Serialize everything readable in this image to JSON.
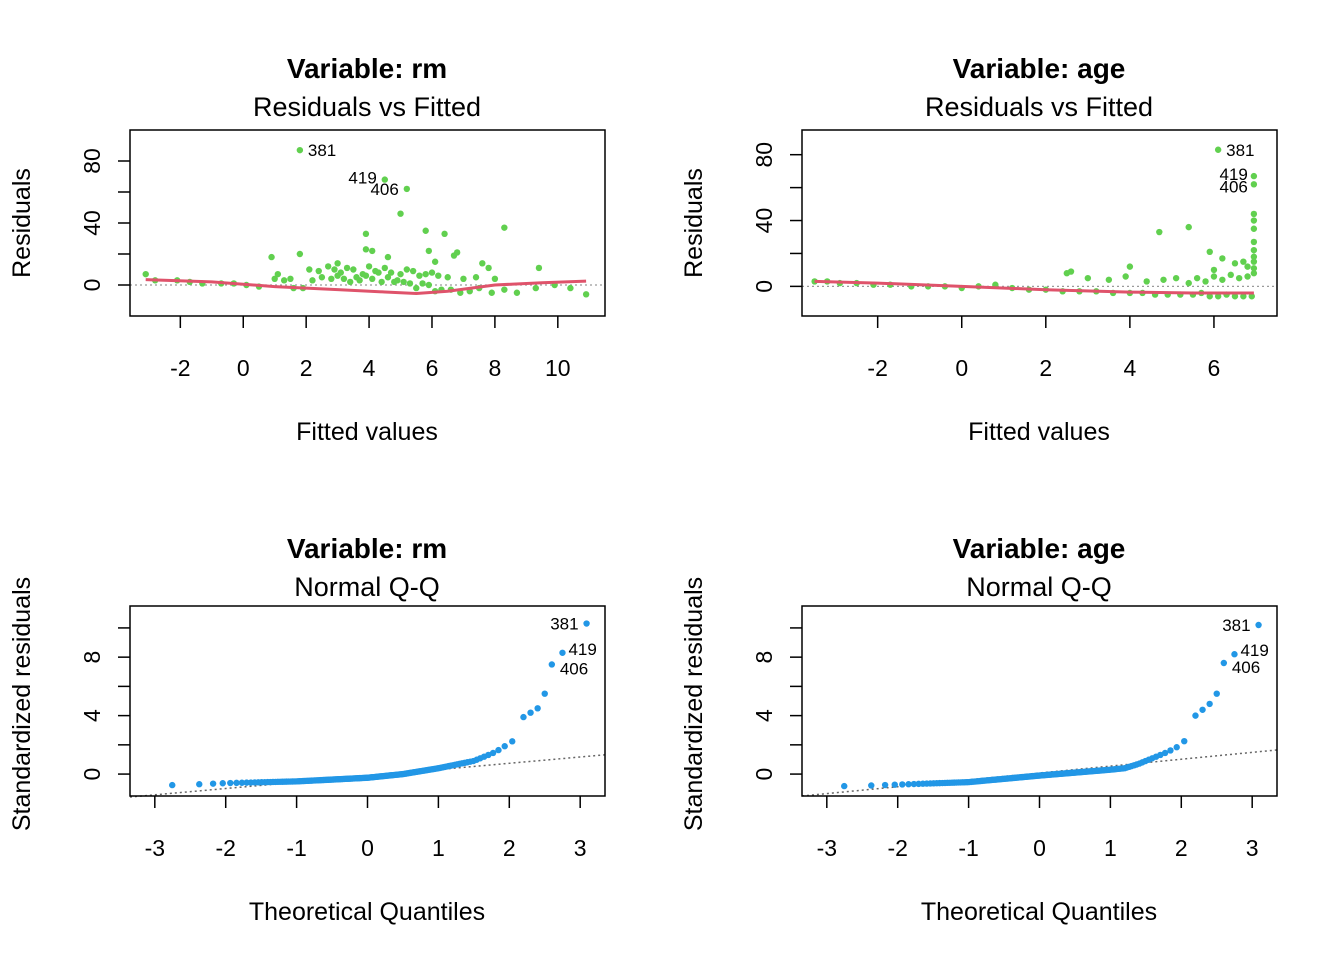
{
  "chart_data": [
    {
      "type": "scatter",
      "title": "Variable:  rm",
      "subtitle": "Residuals vs Fitted",
      "xlabel": "Fitted values",
      "ylabel": "Residuals",
      "xlim": [
        -3.6,
        11.5
      ],
      "ylim": [
        -20,
        100
      ],
      "xticks": [
        -2,
        0,
        2,
        4,
        6,
        8,
        10
      ],
      "yticks": [
        0,
        40,
        80
      ],
      "minor_yticks": [
        20,
        60
      ],
      "grid": false,
      "point_color": "#61D04F",
      "smooth_color": "#DF536B",
      "series": [
        {
          "x": [
            -3.1,
            -2.8,
            -2.1,
            -1.7,
            -1.3,
            -0.7,
            -0.3,
            0.1,
            0.5,
            0.9,
            1.1,
            1.3,
            1.6,
            1.9,
            2.2,
            2.5,
            2.8,
            3.0,
            3.2,
            3.4,
            3.6,
            3.7,
            3.9,
            4.1,
            4.3,
            4.4,
            4.6,
            4.8,
            4.9,
            5.1,
            5.3,
            5.5,
            5.7,
            5.9,
            6.1,
            6.3,
            6.6,
            6.9,
            7.2,
            7.5,
            7.9,
            8.3,
            8.7,
            9.3,
            9.9,
            10.4,
            10.9,
            2.1,
            2.4,
            2.7,
            3.1,
            3.3,
            3.5,
            3.8,
            4.0,
            4.2,
            4.5,
            4.7,
            5.0,
            5.2,
            5.4,
            5.6,
            5.8,
            6.0,
            6.2,
            6.5,
            7.0,
            7.4,
            8.0,
            1.8,
            1.5,
            2.9,
            3.9,
            5.8,
            6.4,
            6.8,
            7.6,
            8.3,
            9.4,
            3.9,
            4.1,
            4.6,
            1.0,
            5.0,
            5.9,
            6.1,
            6.7,
            7.8,
            3.0
          ],
          "y": [
            7,
            3,
            3,
            2,
            1,
            1,
            1,
            0,
            -1,
            18,
            7,
            3,
            -2,
            -2,
            3,
            5,
            4,
            6,
            4,
            2,
            5,
            3,
            6,
            4,
            8,
            2,
            5,
            2,
            3,
            2,
            1,
            -2,
            1,
            0,
            -4,
            -3,
            -3,
            -5,
            -4,
            -2,
            -5,
            -3,
            -5,
            -2,
            0,
            -2,
            -6,
            10,
            9,
            12,
            8,
            11,
            10,
            7,
            12,
            9,
            11,
            8,
            7,
            10,
            9,
            6,
            7,
            8,
            6,
            5,
            4,
            5,
            4,
            20,
            4,
            10,
            23,
            35,
            33,
            21,
            14,
            37,
            11,
            33,
            22,
            18,
            4,
            46,
            22,
            15,
            19,
            11,
            14
          ],
          "labeled": [
            {
              "x": 1.8,
              "y": 87,
              "label": "381"
            },
            {
              "x": 4.5,
              "y": 68,
              "label": "419"
            },
            {
              "x": 5.2,
              "y": 62,
              "label": "406"
            }
          ],
          "smooth": {
            "x": [
              -3.1,
              -1.0,
              1.0,
              3.0,
              4.5,
              5.5,
              6.5,
              8.0,
              9.5,
              10.9
            ],
            "y": [
              3.5,
              2.0,
              -1.0,
              -3.0,
              -4.5,
              -5.5,
              -4.0,
              0.0,
              1.5,
              2.5
            ]
          }
        }
      ]
    },
    {
      "type": "scatter",
      "title": "Variable:  age",
      "subtitle": "Residuals vs Fitted",
      "xlabel": "Fitted values",
      "ylabel": "Residuals",
      "xlim": [
        -3.8,
        7.5
      ],
      "ylim": [
        -18,
        95
      ],
      "xticks": [
        -2,
        0,
        2,
        4,
        6
      ],
      "yticks": [
        0,
        40,
        80
      ],
      "minor_yticks": [
        20,
        60
      ],
      "grid": false,
      "point_color": "#61D04F",
      "smooth_color": "#DF536B",
      "series": [
        {
          "x": [
            -3.5,
            -3.2,
            -2.9,
            -2.5,
            -2.1,
            -1.7,
            -1.2,
            -0.8,
            -0.4,
            0.0,
            0.4,
            0.8,
            1.2,
            1.6,
            2.0,
            2.4,
            2.8,
            3.2,
            3.6,
            4.0,
            4.3,
            4.6,
            4.9,
            5.2,
            5.5,
            5.7,
            5.9,
            6.1,
            6.3,
            6.5,
            6.7,
            6.9,
            2.5,
            3.0,
            3.5,
            3.9,
            4.4,
            4.8,
            5.1,
            5.4,
            5.6,
            5.8,
            6.0,
            6.2,
            6.4,
            6.6,
            6.8,
            6.95,
            6.95,
            6.95,
            6.95,
            6.95,
            6.95,
            6.95,
            6.95,
            6.95,
            4.7,
            5.4,
            5.9,
            6.2,
            6.5,
            6.8,
            2.6,
            4.0,
            6.0,
            6.7
          ],
          "y": [
            3,
            3,
            2,
            2,
            1,
            1,
            0,
            0,
            0,
            -1,
            0,
            1,
            -1,
            -2,
            -2,
            -3,
            -3,
            -3,
            -4,
            -4,
            -4,
            -5,
            -5,
            -5,
            -5,
            -4,
            -6,
            -6,
            -5,
            -6,
            -6,
            -6,
            8,
            5,
            4,
            6,
            3,
            4,
            5,
            2,
            5,
            3,
            6,
            4,
            7,
            5,
            6,
            44,
            40,
            35,
            27,
            22,
            18,
            15,
            11,
            8,
            33,
            36,
            21,
            17,
            14,
            12,
            9,
            12,
            10,
            15
          ],
          "labeled": [
            {
              "x": 6.1,
              "y": 83,
              "label": "381"
            },
            {
              "x": 6.95,
              "y": 67,
              "label": "419"
            },
            {
              "x": 6.95,
              "y": 62,
              "label": "406"
            }
          ],
          "smooth": {
            "x": [
              -3.5,
              -2.0,
              0.0,
              2.0,
              4.0,
              5.5,
              6.95
            ],
            "y": [
              3.0,
              2.0,
              0.0,
              -2.0,
              -3.5,
              -4.0,
              -4.0
            ]
          }
        }
      ]
    },
    {
      "type": "scatter",
      "title": "Variable:  rm",
      "subtitle": "Normal Q-Q",
      "xlabel": "Theoretical Quantiles",
      "ylabel": "Standardized residuals",
      "xlim": [
        -3.35,
        3.35
      ],
      "ylim": [
        -1.5,
        11.5
      ],
      "xticks": [
        -3,
        -2,
        -1,
        0,
        1,
        2,
        3
      ],
      "yticks": [
        0,
        4,
        8
      ],
      "minor_yticks": [
        2,
        6,
        10
      ],
      "grid": false,
      "point_color": "#2297E6",
      "reference_line": {
        "x": [
          -3.35,
          3.35
        ],
        "y": [
          -1.57,
          1.32
        ]
      },
      "series": [
        {
          "qq_knots": {
            "x": [
              -3.09,
              -2.5,
              -2.0,
              -1.0,
              0.0,
              0.5,
              1.0,
              1.5,
              1.8,
              2.0,
              2.15
            ],
            "y": [
              -0.8,
              -0.72,
              -0.62,
              -0.5,
              -0.25,
              0.0,
              0.4,
              0.9,
              1.5,
              2.1,
              2.6
            ]
          },
          "n_points": 170,
          "extra": [
            {
              "x": 2.2,
              "y": 3.9
            },
            {
              "x": 2.3,
              "y": 4.2
            },
            {
              "x": 2.4,
              "y": 4.5
            },
            {
              "x": 2.5,
              "y": 5.5
            }
          ],
          "labeled": [
            {
              "x": 3.09,
              "y": 10.3,
              "label": "381"
            },
            {
              "x": 2.75,
              "y": 8.3,
              "label": "419"
            },
            {
              "x": 2.6,
              "y": 7.5,
              "label": "406"
            }
          ]
        }
      ]
    },
    {
      "type": "scatter",
      "title": "Variable:  age",
      "subtitle": "Normal Q-Q",
      "xlabel": "Theoretical Quantiles",
      "ylabel": "Standardized residuals",
      "xlim": [
        -3.35,
        3.35
      ],
      "ylim": [
        -1.5,
        11.5
      ],
      "xticks": [
        -3,
        -2,
        -1,
        0,
        1,
        2,
        3
      ],
      "yticks": [
        0,
        4,
        8
      ],
      "minor_yticks": [
        2,
        6,
        10
      ],
      "grid": false,
      "point_color": "#2297E6",
      "reference_line": {
        "x": [
          -3.35,
          3.35
        ],
        "y": [
          -1.5,
          1.65
        ]
      },
      "series": [
        {
          "qq_knots": {
            "x": [
              -3.09,
              -2.5,
              -2.0,
              -1.0,
              0.0,
              0.5,
              1.0,
              1.2,
              1.4,
              1.6,
              1.8,
              2.0,
              2.1
            ],
            "y": [
              -0.85,
              -0.8,
              -0.72,
              -0.55,
              -0.1,
              0.1,
              0.3,
              0.4,
              0.7,
              1.1,
              1.5,
              2.0,
              2.6
            ]
          },
          "n_points": 170,
          "extra": [
            {
              "x": 2.2,
              "y": 4.0
            },
            {
              "x": 2.3,
              "y": 4.4
            },
            {
              "x": 2.4,
              "y": 4.8
            },
            {
              "x": 2.5,
              "y": 5.5
            }
          ],
          "labeled": [
            {
              "x": 3.09,
              "y": 10.2,
              "label": "381"
            },
            {
              "x": 2.75,
              "y": 8.2,
              "label": "419"
            },
            {
              "x": 2.6,
              "y": 7.6,
              "label": "406"
            }
          ]
        }
      ]
    }
  ]
}
